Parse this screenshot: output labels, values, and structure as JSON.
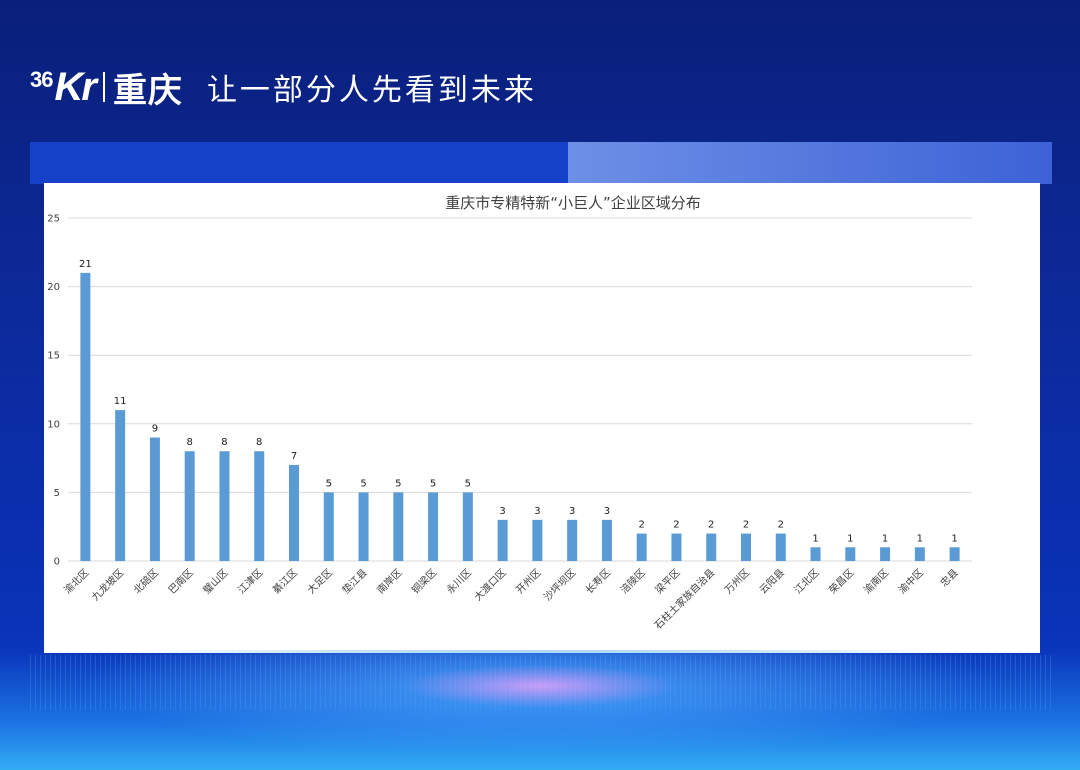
{
  "header": {
    "logo_36": "36",
    "logo_kr": "Kr",
    "logo_city": "重庆",
    "slogan": "让一部分人先看到未来"
  },
  "colors": {
    "bar": "#5b9bd5",
    "grid": "#d9d9d9",
    "axis_text": "#404040"
  },
  "chart_data": {
    "type": "bar",
    "title": "重庆市专精特新“小巨人”企业区域分布",
    "categories": [
      "渝北区",
      "九龙坡区",
      "北碚区",
      "巴南区",
      "璧山区",
      "江津区",
      "綦江区",
      "大足区",
      "垫江县",
      "南岸区",
      "铜梁区",
      "永川区",
      "大渡口区",
      "开州区",
      "沙坪坝区",
      "长寿区",
      "涪陵区",
      "梁平区",
      "石柱土家族自治县",
      "万州区",
      "云阳县",
      "江北区",
      "荣昌区",
      "渝南区",
      "渝中区",
      "忠县"
    ],
    "values": [
      21,
      11,
      9,
      8,
      8,
      8,
      7,
      5,
      5,
      5,
      5,
      5,
      3,
      3,
      3,
      3,
      2,
      2,
      2,
      2,
      2,
      1,
      1,
      1,
      1,
      1
    ],
    "ylim": [
      0,
      25
    ],
    "yticks": [
      "0",
      "5",
      "10",
      "15",
      "20",
      "25"
    ],
    "xlabel": "",
    "ylabel": "",
    "grid": true,
    "legend": "none"
  }
}
